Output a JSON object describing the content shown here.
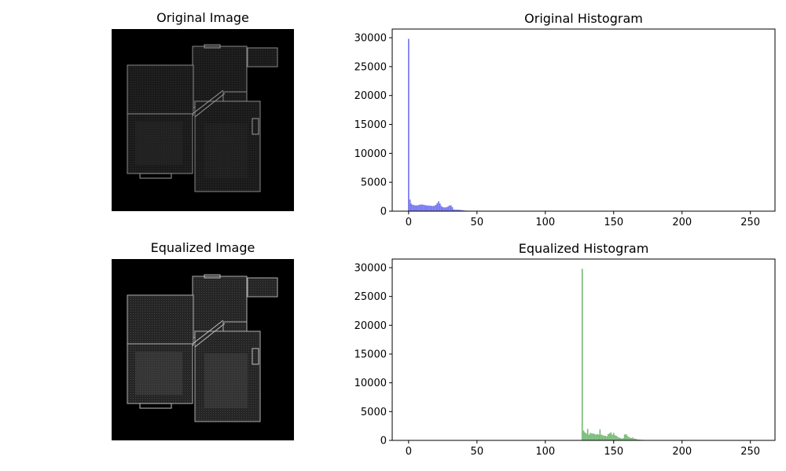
{
  "panels": {
    "original_image_title": "Original Image",
    "equalized_image_title": "Equalized Image"
  },
  "colors": {
    "original": "#7b7bf0",
    "equalized": "#7cbd7c",
    "image_bg": "#000000"
  },
  "icons": {
    "floorplan": "floor-plan-image-icon"
  },
  "chart_data": [
    {
      "type": "bar",
      "title": "Original Histogram",
      "xlabel": "",
      "ylabel": "",
      "xlim": [
        -12,
        268
      ],
      "ylim": [
        0,
        31500
      ],
      "x_ticks": [
        0,
        50,
        100,
        150,
        200,
        250
      ],
      "y_ticks": [
        0,
        5000,
        10000,
        15000,
        20000,
        25000,
        30000
      ],
      "x_tick_labels": [
        "0",
        "50",
        "100",
        "150",
        "200",
        "250"
      ],
      "y_tick_labels": [
        "0",
        "5000",
        "10000",
        "15000",
        "20000",
        "25000",
        "30000"
      ],
      "color": "#7b7bf0",
      "series": [
        {
          "x": [
            0,
            1,
            2,
            3,
            4,
            5,
            6,
            7,
            8,
            9,
            10,
            11,
            12,
            13,
            14,
            15,
            16,
            17,
            18,
            19,
            20,
            21,
            22,
            23,
            24,
            25,
            26,
            27,
            28,
            29,
            30,
            31,
            32,
            33,
            34,
            35,
            36,
            37,
            38,
            39,
            40,
            41,
            42,
            43,
            44,
            45,
            46,
            47,
            48,
            49,
            50
          ],
          "values": [
            29800,
            2000,
            1300,
            1100,
            1050,
            1000,
            1000,
            1050,
            1100,
            1150,
            1150,
            1100,
            1050,
            1000,
            1000,
            950,
            950,
            900,
            900,
            950,
            1100,
            1400,
            1700,
            1300,
            900,
            700,
            650,
            650,
            700,
            850,
            1000,
            1000,
            700,
            300,
            250,
            250,
            250,
            250,
            200,
            200,
            150,
            100,
            100,
            80,
            60,
            50,
            40,
            30,
            20,
            10,
            5
          ]
        }
      ]
    },
    {
      "type": "bar",
      "title": "Equalized Histogram",
      "xlabel": "",
      "ylabel": "",
      "xlim": [
        -12,
        268
      ],
      "ylim": [
        0,
        31500
      ],
      "x_ticks": [
        0,
        50,
        100,
        150,
        200,
        250
      ],
      "y_ticks": [
        0,
        5000,
        10000,
        15000,
        20000,
        25000,
        30000
      ],
      "x_tick_labels": [
        "0",
        "50",
        "100",
        "150",
        "200",
        "250"
      ],
      "y_tick_labels": [
        "0",
        "5000",
        "10000",
        "15000",
        "20000",
        "25000",
        "30000"
      ],
      "color": "#7cbd7c",
      "series": [
        {
          "x": [
            127,
            128,
            129,
            130,
            131,
            132,
            133,
            134,
            135,
            136,
            137,
            138,
            139,
            140,
            141,
            142,
            143,
            144,
            145,
            146,
            147,
            148,
            149,
            150,
            151,
            152,
            153,
            154,
            155,
            156,
            157,
            158,
            159,
            160,
            161,
            162,
            163,
            164,
            165,
            166,
            167,
            168,
            169,
            170,
            171,
            172,
            173,
            174,
            175
          ],
          "values": [
            29800,
            1700,
            1400,
            1200,
            2000,
            1000,
            1300,
            1200,
            1200,
            1100,
            1000,
            1100,
            1000,
            1900,
            1000,
            900,
            800,
            800,
            700,
            1100,
            1200,
            1400,
            1000,
            1300,
            900,
            800,
            600,
            500,
            400,
            300,
            400,
            1000,
            1100,
            800,
            600,
            500,
            400,
            500,
            300,
            300,
            200,
            150,
            150,
            100,
            100,
            80,
            60,
            40,
            20
          ]
        }
      ]
    }
  ]
}
